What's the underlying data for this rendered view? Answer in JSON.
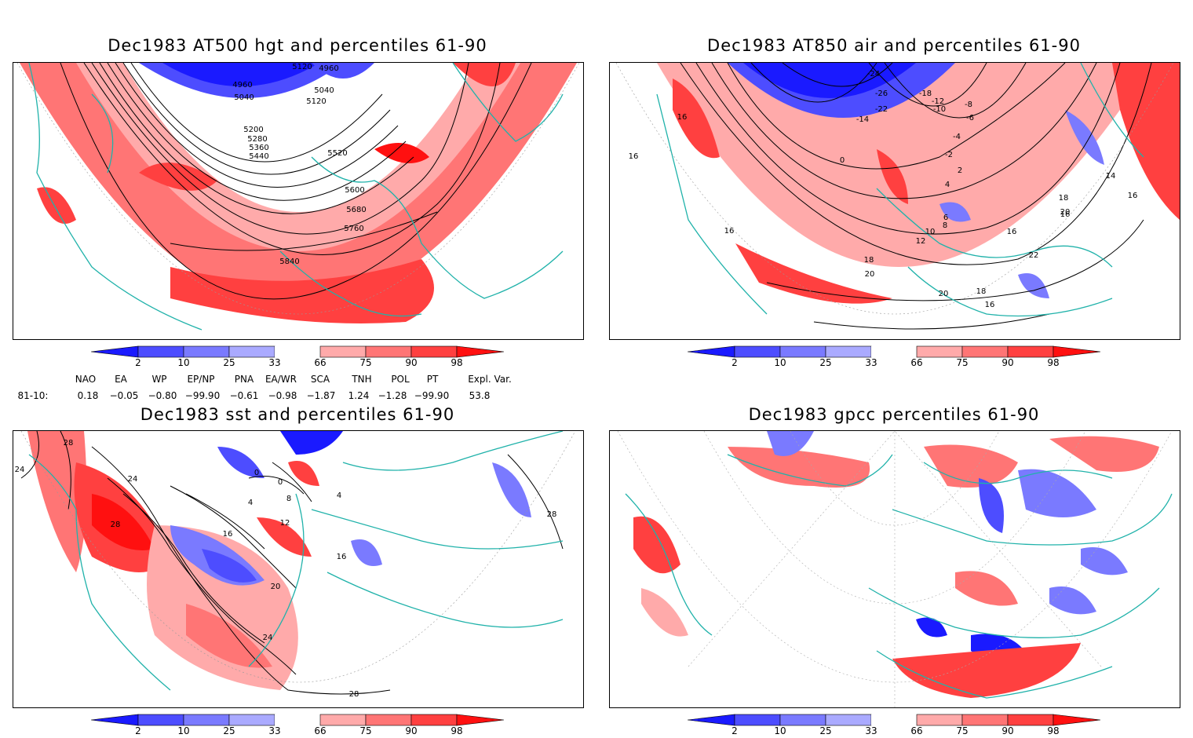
{
  "panels": [
    {
      "title": "Dec1983 AT500 hgt and percentiles 61-90",
      "contour_labels": [
        "5120",
        "4960",
        "5040",
        "4960",
        "5040",
        "5120",
        "5200",
        "5280",
        "5360",
        "5440",
        "5520",
        "5600",
        "5680",
        "5760",
        "5840"
      ]
    },
    {
      "title": "Dec1983 AT850 air and percentiles 61-90",
      "contour_labels": [
        "-24",
        "-26",
        "-22",
        "-18",
        "-14",
        "-12",
        "-10",
        "-8",
        "-6",
        "-4",
        "-2",
        "0",
        "2",
        "4",
        "6",
        "8",
        "10",
        "12",
        "14",
        "16",
        "18",
        "20",
        "22",
        "16",
        "16",
        "16",
        "16",
        "16",
        "18",
        "20",
        "20",
        "18",
        "16"
      ]
    },
    {
      "title": "Dec1983 sst and percentiles 61-90",
      "contour_labels": [
        "28",
        "24",
        "24",
        "28",
        "0",
        "4",
        "8",
        "0",
        "4",
        "12",
        "16",
        "16",
        "20",
        "24",
        "28",
        "28"
      ]
    },
    {
      "title": "Dec1983 gpcc percentiles 61-90",
      "contour_labels": []
    }
  ],
  "colorbar": {
    "labels": [
      "2",
      "10",
      "25",
      "33",
      "66",
      "75",
      "90",
      "98"
    ],
    "colors": [
      "#1a1aff",
      "#4d4dff",
      "#7a7aff",
      "#aaaaff",
      "#ffffff",
      "#ffaaaa",
      "#ff7575",
      "#ff4040",
      "#ff1010"
    ]
  },
  "indices": {
    "headers": [
      "NAO",
      "EA",
      "WP",
      "EP/NP",
      "PNA",
      "EA/WR",
      "SCA",
      "TNH",
      "POL",
      "PT",
      "Expl. Var."
    ],
    "row_label": "81-10:",
    "values": [
      "0.18",
      "−0.05",
      "−0.80",
      "−99.90",
      "−0.61",
      "−0.98",
      "−1.87",
      "1.24",
      "−1.28",
      "−99.90",
      "53.8"
    ]
  },
  "colors": {
    "coast": "#20b2aa",
    "red_light": "#ffaaaa",
    "red_mid": "#ff7575",
    "red_dark": "#ff3030",
    "blue_light": "#aaaaff",
    "blue_mid": "#6060ff",
    "blue_dark": "#1a1aff"
  }
}
